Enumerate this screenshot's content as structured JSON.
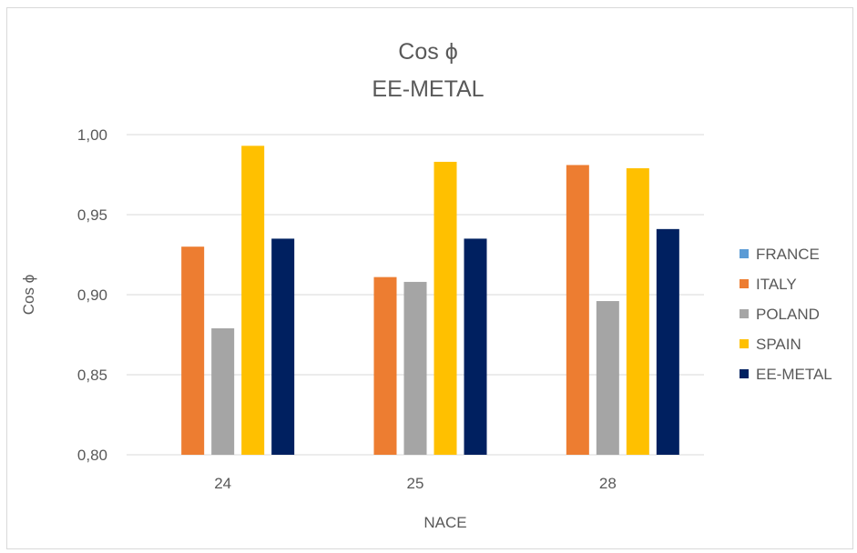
{
  "chart_data": {
    "type": "bar",
    "title": "Cos ϕ",
    "subtitle": "EE-METAL",
    "xlabel": "NACE",
    "ylabel": "Cos ϕ",
    "categories": [
      "24",
      "25",
      "28"
    ],
    "ylim": [
      0.8,
      1.0
    ],
    "yticks": [
      0.8,
      0.85,
      0.9,
      0.95,
      1.0
    ],
    "ytick_labels": [
      "0,80",
      "0,85",
      "0,90",
      "0,95",
      "1,00"
    ],
    "grid": true,
    "legend_position": "right",
    "series": [
      {
        "name": "FRANCE",
        "color": "#5b9bd5",
        "values": [
          null,
          null,
          null
        ]
      },
      {
        "name": "ITALY",
        "color": "#ed7d31",
        "values": [
          0.93,
          0.911,
          0.981
        ]
      },
      {
        "name": "POLAND",
        "color": "#a5a5a5",
        "values": [
          0.879,
          0.908,
          0.896
        ]
      },
      {
        "name": "SPAIN",
        "color": "#ffc000",
        "values": [
          0.993,
          0.983,
          0.979
        ]
      },
      {
        "name": "EE-METAL",
        "color": "#002060",
        "values": [
          0.935,
          0.935,
          0.941
        ]
      }
    ]
  }
}
